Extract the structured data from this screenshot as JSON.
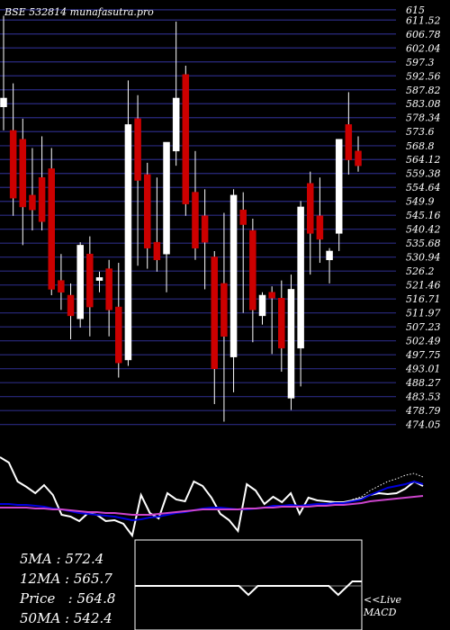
{
  "header": {
    "title": "BSE 532814  munafasutra.pro"
  },
  "colors": {
    "bg": "#000000",
    "grid": "#2a2a80",
    "up": "#ffffff",
    "down": "#cc0000",
    "white_line": "#ffffff",
    "blue_line": "#0000dd",
    "magenta_line": "#cc44cc",
    "dotted": "#ffffff"
  },
  "chart_data": [
    {
      "type": "candlestick",
      "title": "BSE 532814  munafasutra.pro",
      "y_ticks": [
        "615",
        "611.52",
        "606.78",
        "602.04",
        "597.3",
        "592.56",
        "587.82",
        "583.08",
        "578.34",
        "573.6",
        "568.8",
        "564.12",
        "559.38",
        "554.64",
        "549.9",
        "545.16",
        "540.42",
        "535.68",
        "530.94",
        "526.2",
        "521.46",
        "516.71",
        "511.97",
        "507.23",
        "502.49",
        "497.75",
        "493.01",
        "488.27",
        "483.53",
        "478.79",
        "474.05"
      ],
      "ylim": [
        471.5,
        616.5
      ],
      "candles": [
        {
          "o": 582,
          "h": 613,
          "l": 574,
          "c": 585
        },
        {
          "o": 574,
          "h": 590,
          "l": 545,
          "c": 551
        },
        {
          "o": 571,
          "h": 578,
          "l": 535,
          "c": 548
        },
        {
          "o": 552,
          "h": 568,
          "l": 540,
          "c": 547
        },
        {
          "o": 558,
          "h": 572,
          "l": 540,
          "c": 543
        },
        {
          "o": 561,
          "h": 568,
          "l": 518,
          "c": 520
        },
        {
          "o": 523,
          "h": 532,
          "l": 513,
          "c": 519
        },
        {
          "o": 518,
          "h": 522,
          "l": 503,
          "c": 511
        },
        {
          "o": 510,
          "h": 536,
          "l": 507,
          "c": 535
        },
        {
          "o": 532,
          "h": 538,
          "l": 504,
          "c": 514
        },
        {
          "o": 523,
          "h": 526,
          "l": 519,
          "c": 524
        },
        {
          "o": 527,
          "h": 530,
          "l": 504,
          "c": 513
        },
        {
          "o": 514,
          "h": 529,
          "l": 490,
          "c": 495
        },
        {
          "o": 496,
          "h": 591,
          "l": 494,
          "c": 576
        },
        {
          "o": 578,
          "h": 586,
          "l": 528,
          "c": 557
        },
        {
          "o": 559,
          "h": 563,
          "l": 527,
          "c": 534
        },
        {
          "o": 536,
          "h": 558,
          "l": 526,
          "c": 530
        },
        {
          "o": 532,
          "h": 569,
          "l": 519,
          "c": 570
        },
        {
          "o": 567,
          "h": 611,
          "l": 562,
          "c": 585
        },
        {
          "o": 593,
          "h": 596,
          "l": 545,
          "c": 549
        },
        {
          "o": 553,
          "h": 567,
          "l": 530,
          "c": 534
        },
        {
          "o": 545,
          "h": 554,
          "l": 520,
          "c": 536
        },
        {
          "o": 531,
          "h": 533,
          "l": 481,
          "c": 493
        },
        {
          "o": 522,
          "h": 546,
          "l": 475,
          "c": 504
        },
        {
          "o": 497,
          "h": 554,
          "l": 485,
          "c": 552
        },
        {
          "o": 547,
          "h": 553,
          "l": 512,
          "c": 542
        },
        {
          "o": 540,
          "h": 544,
          "l": 502,
          "c": 513
        },
        {
          "o": 511,
          "h": 519,
          "l": 508,
          "c": 518
        },
        {
          "o": 519,
          "h": 521,
          "l": 498,
          "c": 517
        },
        {
          "o": 517,
          "h": 523,
          "l": 492,
          "c": 500
        },
        {
          "o": 483,
          "h": 525,
          "l": 479,
          "c": 520
        },
        {
          "o": 500,
          "h": 550,
          "l": 487,
          "c": 548
        },
        {
          "o": 556,
          "h": 560,
          "l": 525,
          "c": 539
        },
        {
          "o": 545,
          "h": 558,
          "l": 529,
          "c": 537
        },
        {
          "o": 530,
          "h": 534,
          "l": 522,
          "c": 533
        },
        {
          "o": 539,
          "h": 570,
          "l": 533,
          "c": 571
        },
        {
          "o": 576,
          "h": 587,
          "l": 559,
          "c": 564
        },
        {
          "o": 567,
          "h": 572,
          "l": 560,
          "c": 562
        }
      ]
    },
    {
      "type": "line",
      "description_free": true,
      "ylim": [
        0,
        100
      ],
      "series": [
        {
          "color_key": "white_line",
          "style": "solid",
          "values": [
            92,
            86,
            65,
            59,
            52,
            61,
            50,
            28,
            26,
            21,
            30,
            28,
            21,
            22,
            18,
            5,
            50,
            30,
            24,
            52,
            45,
            43,
            65,
            60,
            47,
            29,
            22,
            10,
            62,
            55,
            40,
            48,
            42,
            52,
            29,
            47,
            44,
            43,
            42,
            42,
            44,
            46,
            50,
            52,
            51,
            52,
            57,
            65,
            60
          ]
        },
        {
          "color_key": "dotted",
          "style": "dotted",
          "values": [
            null,
            null,
            null,
            null,
            null,
            null,
            null,
            null,
            null,
            null,
            null,
            null,
            null,
            null,
            null,
            null,
            null,
            null,
            null,
            null,
            null,
            null,
            null,
            null,
            null,
            null,
            null,
            null,
            null,
            null,
            null,
            null,
            null,
            null,
            null,
            null,
            null,
            null,
            null,
            null,
            45,
            48,
            55,
            60,
            65,
            68,
            72,
            74,
            70
          ]
        },
        {
          "color_key": "blue_line",
          "style": "solid",
          "values": [
            40,
            40,
            39,
            39,
            38,
            37,
            35,
            34,
            32,
            30,
            29,
            28,
            27,
            26,
            24,
            22,
            23,
            25,
            26,
            28,
            30,
            31,
            33,
            35,
            36,
            36,
            35,
            34,
            34,
            35,
            36,
            38,
            38,
            39,
            38,
            39,
            40,
            40,
            41,
            41,
            43,
            45,
            50,
            54,
            58,
            60,
            62,
            65,
            62
          ]
        },
        {
          "color_key": "magenta_line",
          "style": "solid",
          "values": [
            36,
            36,
            36,
            36,
            35,
            35,
            34,
            34,
            33,
            32,
            31,
            31,
            30,
            30,
            29,
            28,
            28,
            28,
            29,
            30,
            31,
            32,
            33,
            34,
            34,
            34,
            34,
            34,
            35,
            35,
            36,
            36,
            37,
            37,
            37,
            37,
            38,
            38,
            39,
            39,
            40,
            41,
            43,
            44,
            45,
            46,
            47,
            48,
            49
          ]
        }
      ]
    },
    {
      "type": "line",
      "name": "MACD",
      "ylim": [
        -10,
        10
      ],
      "series": [
        {
          "color_key": "white_line",
          "values": [
            0,
            0,
            0,
            0,
            0,
            0,
            0,
            0,
            0,
            0,
            0,
            0,
            0,
            0,
            0,
            0,
            0,
            0,
            0,
            0,
            0,
            0,
            0,
            -1,
            -2,
            -1,
            0,
            0,
            0,
            0,
            0,
            0,
            0,
            0,
            0,
            0,
            0,
            0,
            0,
            0,
            0,
            0,
            -1,
            -2,
            -1,
            0,
            1,
            1,
            1
          ]
        }
      ]
    }
  ],
  "indicators": {
    "ma5": "5MA : 572.4",
    "ma12": "12MA : 565.7",
    "price": "Price   : 564.8",
    "ma50": "50MA : 542.4"
  },
  "macd_label": {
    "line1": "<<Live",
    "line2": "MACD"
  }
}
